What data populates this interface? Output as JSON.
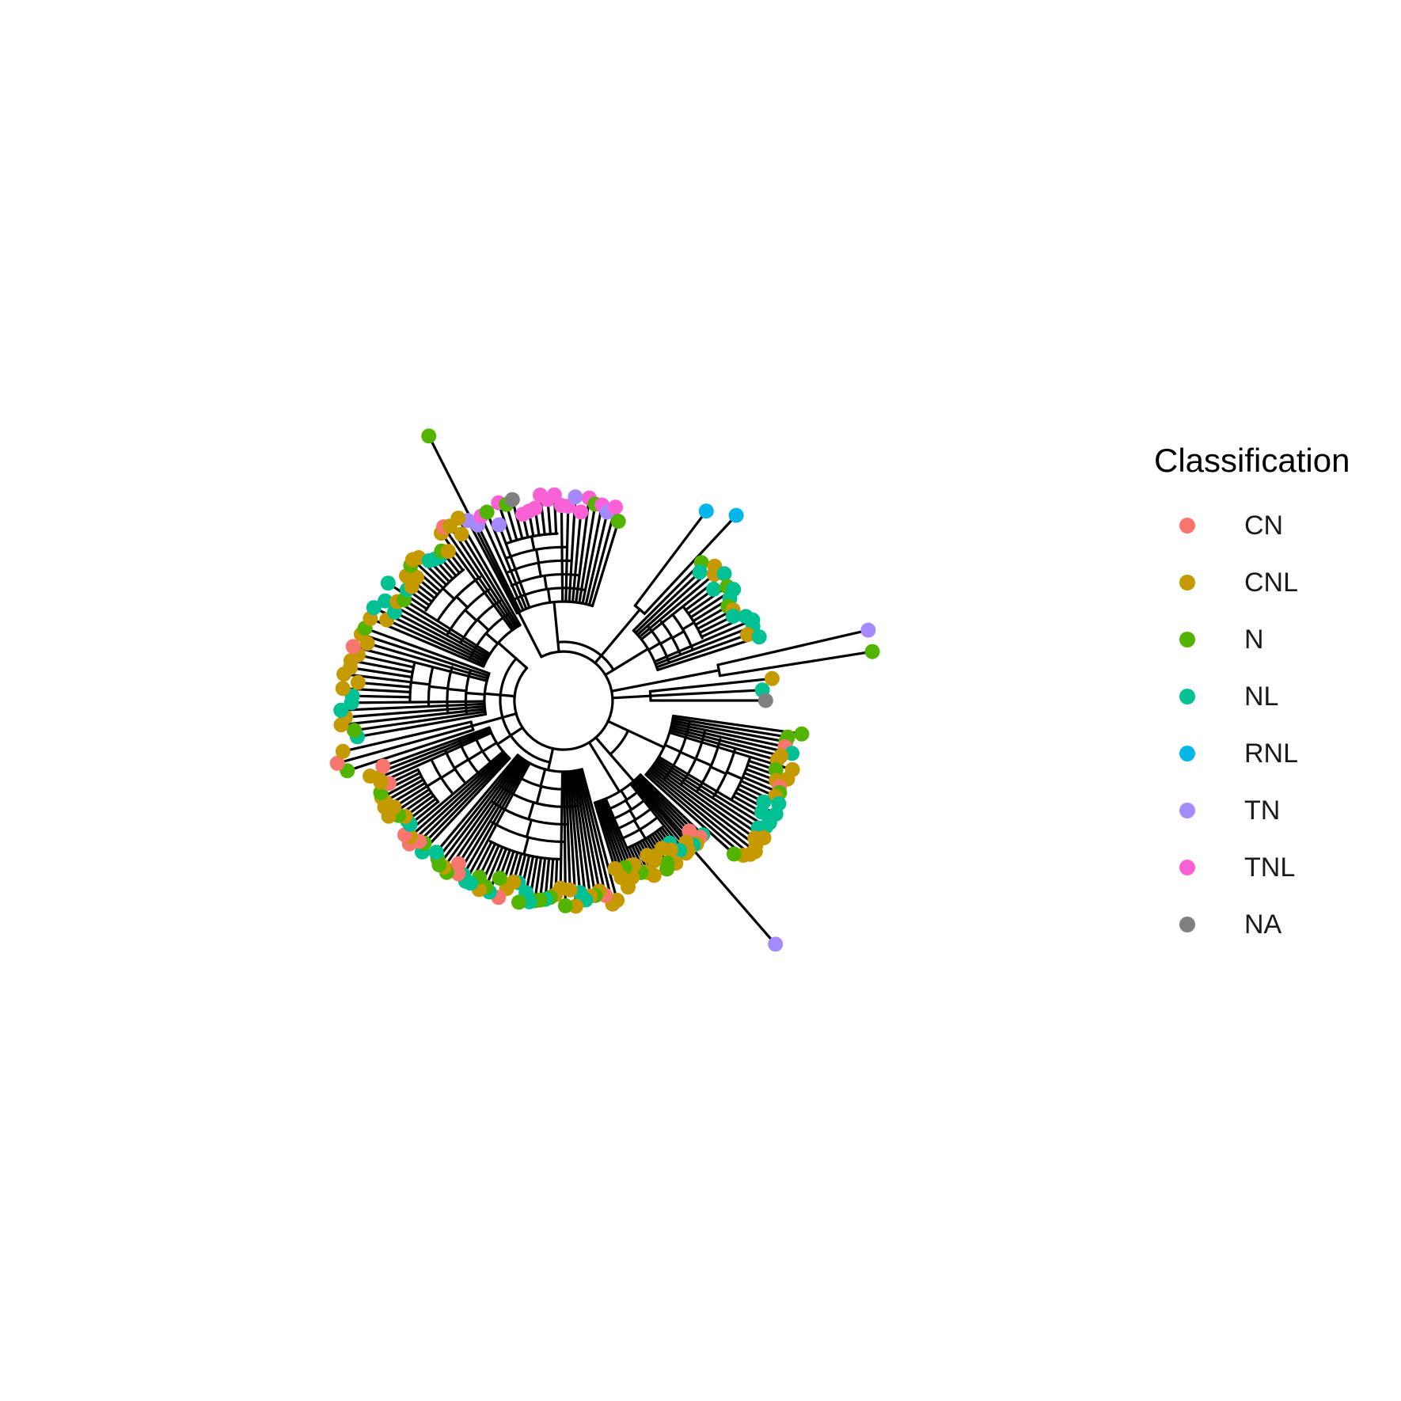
{
  "legend": {
    "title": "Classification",
    "items": [
      {
        "label": "CN",
        "color": "#F8766D"
      },
      {
        "label": "CNL",
        "color": "#C49A00"
      },
      {
        "label": "N",
        "color": "#53B400"
      },
      {
        "label": "NL",
        "color": "#00C094"
      },
      {
        "label": "RNL",
        "color": "#00B6EB"
      },
      {
        "label": "TN",
        "color": "#A58AFF"
      },
      {
        "label": "TNL",
        "color": "#FB61D7"
      },
      {
        "label": "NA",
        "color": "#808080"
      }
    ]
  },
  "tree": {
    "layout": "circular",
    "branch_color": "#000000",
    "clades": [
      {
        "classes": [
          "TN",
          "TN",
          "TNL",
          "N",
          "TN",
          "TNL",
          "N",
          "NA",
          "TNL",
          "TNL",
          "TNL",
          "TNL",
          "TNL",
          "TNL",
          "TNL",
          "TNL",
          "TN",
          "TNL",
          "TNL",
          "N",
          "TNL",
          "TN",
          "TNL",
          "N"
        ]
      },
      {
        "classes": [
          "RNL",
          "RNL"
        ]
      },
      {
        "classes": [
          "N",
          "NL",
          "CNL",
          "CNL",
          "NL",
          "NL",
          "N",
          "NL",
          "NL",
          "N",
          "CNL",
          "NL",
          "NL",
          "NL",
          "NL",
          "CNL",
          "NL"
        ]
      },
      {
        "classes": [
          "TN",
          "N"
        ]
      },
      {
        "classes": [
          "CNL",
          "NL",
          "NA"
        ]
      },
      {
        "classes": [
          "N",
          "N",
          "N",
          "CN",
          "NL",
          "CNL",
          "CNL",
          "CNL",
          "N",
          "CNL",
          "CNL",
          "CN",
          "N",
          "CNL",
          "NL",
          "NL",
          "NL",
          "NL",
          "NL",
          "NL",
          "NL",
          "CNL",
          "CNL",
          "CNL",
          "CNL",
          "CNL",
          "CNL",
          "N"
        ]
      },
      {
        "classes": [
          "NL",
          "CN",
          "CN",
          "CNL",
          "NL",
          "CNL",
          "CNL",
          "CNL",
          "NL",
          "NL",
          "CNL",
          "CNL",
          "CNL",
          "N",
          "N",
          "CNL",
          "CNL",
          "CNL",
          "CNL",
          "CNL",
          "CNL",
          "N",
          "CNL",
          "CNL",
          "CNL",
          "N",
          "CNL",
          "CNL",
          "CNL"
        ]
      },
      {
        "classes": [
          "TN"
        ]
      },
      {
        "classes": [
          "CNL",
          "CNL",
          "CN",
          "CNL",
          "N",
          "CNL",
          "NL",
          "NL",
          "CNL",
          "CNL",
          "N",
          "CNL",
          "CNL",
          "N",
          "NL",
          "N",
          "N",
          "NL",
          "NL",
          "N",
          "NL",
          "CNL",
          "CNL",
          "CN",
          "N",
          "NL",
          "N",
          "CNL",
          "N",
          "NL",
          "NL",
          "NL",
          "CN",
          "CN",
          "N",
          "CNL",
          "N",
          "N",
          "NL"
        ]
      },
      {
        "classes": [
          "NL",
          "N",
          "CN",
          "CN",
          "CNL",
          "CN",
          "NL",
          "NL",
          "CNL",
          "N",
          "CNL",
          "CNL",
          "CNL",
          "CNL",
          "CNL",
          "N",
          "CN",
          "CNL",
          "CNL",
          "CNL",
          "CN"
        ]
      },
      {
        "classes": [
          "N",
          "CN",
          "CNL"
        ]
      },
      {
        "classes": [
          "NL",
          "N",
          "CNL",
          "CNL",
          "NL",
          "NL",
          "NL",
          "CNL",
          "CNL",
          "CNL",
          "CNL",
          "CNL",
          "CNL",
          "CN",
          "CNL",
          "CNL",
          "N"
        ]
      },
      {
        "classes": [
          "CNL",
          "CNL",
          "NL",
          "NL",
          "NL",
          "CNL",
          "N",
          "NL",
          "NL",
          "CNL",
          "CNL",
          "CNL",
          "N",
          "CNL",
          "CNL",
          "NL",
          "NL",
          "NL",
          "N",
          "CNL",
          "CNL",
          "CN",
          "CNL",
          "CNL",
          "CNL"
        ]
      },
      {
        "classes": [
          "N"
        ]
      }
    ]
  }
}
